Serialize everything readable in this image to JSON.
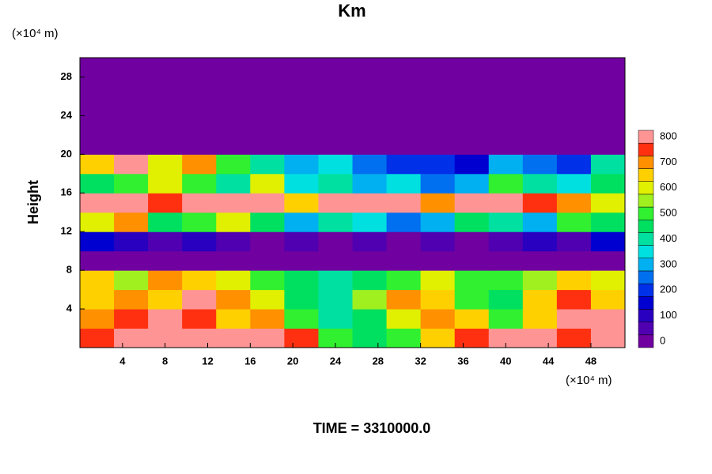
{
  "chart_data": {
    "type": "heatmap",
    "title": "Km",
    "ylabel": "Height",
    "yunit": "(×10⁴ m)",
    "xunit": "(×10⁴ m)",
    "footer": "TIME = 3310000.0",
    "xlim": [
      0,
      51.2
    ],
    "ylim": [
      0,
      30
    ],
    "xticks": [
      4,
      8,
      12,
      16,
      20,
      24,
      28,
      32,
      36,
      40,
      44,
      48
    ],
    "yticks": [
      4,
      8,
      12,
      16,
      20,
      24,
      28
    ],
    "x_edges": [
      0,
      3.2,
      6.4,
      9.6,
      12.8,
      16,
      19.2,
      22.4,
      25.6,
      28.8,
      32,
      35.2,
      38.4,
      41.6,
      44.8,
      48,
      51.2
    ],
    "y_edges": [
      0,
      2,
      4,
      6,
      8,
      10,
      12,
      14,
      16,
      18,
      20,
      22,
      24,
      26,
      28,
      30
    ],
    "z": [
      [
        750,
        800,
        800,
        800,
        800,
        800,
        750,
        500,
        450,
        500,
        650,
        750,
        800,
        800,
        750,
        800
      ],
      [
        700,
        750,
        800,
        750,
        650,
        700,
        500,
        400,
        450,
        600,
        700,
        650,
        500,
        650,
        800,
        800
      ],
      [
        650,
        700,
        650,
        800,
        700,
        600,
        450,
        400,
        550,
        700,
        650,
        500,
        450,
        650,
        750,
        650
      ],
      [
        650,
        550,
        700,
        650,
        600,
        500,
        450,
        400,
        450,
        500,
        600,
        500,
        500,
        550,
        650,
        600
      ],
      [
        0,
        0,
        0,
        0,
        0,
        0,
        0,
        0,
        0,
        0,
        0,
        0,
        0,
        0,
        0,
        0
      ],
      [
        150,
        100,
        50,
        100,
        50,
        0,
        50,
        0,
        50,
        0,
        50,
        0,
        50,
        100,
        50,
        150
      ],
      [
        600,
        700,
        450,
        500,
        600,
        450,
        300,
        400,
        350,
        250,
        300,
        450,
        400,
        300,
        500,
        450
      ],
      [
        800,
        800,
        750,
        800,
        800,
        800,
        650,
        800,
        800,
        800,
        700,
        800,
        800,
        750,
        700,
        600
      ],
      [
        450,
        500,
        600,
        500,
        400,
        600,
        350,
        400,
        300,
        350,
        250,
        300,
        500,
        400,
        350,
        450
      ],
      [
        650,
        800,
        600,
        700,
        500,
        400,
        300,
        350,
        250,
        200,
        200,
        150,
        300,
        250,
        200,
        400
      ],
      [
        0,
        0,
        0,
        0,
        0,
        0,
        0,
        0,
        0,
        0,
        0,
        0,
        0,
        0,
        0,
        0
      ],
      [
        0,
        0,
        0,
        0,
        0,
        0,
        0,
        0,
        0,
        0,
        0,
        0,
        0,
        0,
        0,
        0
      ],
      [
        0,
        0,
        0,
        0,
        0,
        0,
        0,
        0,
        0,
        0,
        0,
        0,
        0,
        0,
        0,
        0
      ],
      [
        0,
        0,
        0,
        0,
        0,
        0,
        0,
        0,
        0,
        0,
        0,
        0,
        0,
        0,
        0,
        0
      ],
      [
        0,
        0,
        0,
        0,
        0,
        0,
        0,
        0,
        0,
        0,
        0,
        0,
        0,
        0,
        0,
        0
      ]
    ],
    "clim": [
      0,
      800
    ],
    "cticks": [
      0,
      100,
      200,
      300,
      400,
      500,
      600,
      700,
      800
    ],
    "colormap": [
      "#7000a0",
      "#5000b0",
      "#2a00c0",
      "#0000d0",
      "#0030e8",
      "#0070f0",
      "#00b0f0",
      "#00e0e0",
      "#00e0a0",
      "#00e060",
      "#30f030",
      "#a0f020",
      "#e0f000",
      "#ffd000",
      "#ff9000",
      "#ff3010",
      "#ff9494"
    ]
  }
}
